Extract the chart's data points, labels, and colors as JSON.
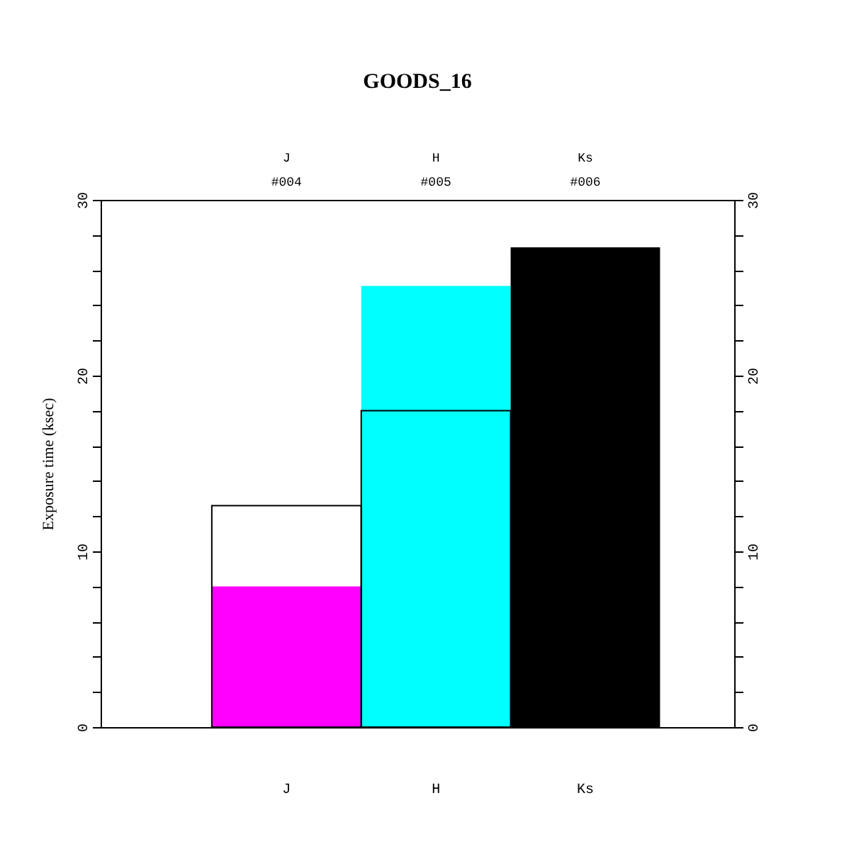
{
  "chart_data": {
    "type": "bar",
    "title": "GOODS_16",
    "ylabel": "Exposure time (ksec)",
    "categories": [
      "J",
      "H",
      "Ks"
    ],
    "annotations": [
      "#004",
      "#005",
      "#006"
    ],
    "series": [
      {
        "colors": [
          "#ff00ff",
          "#00ffff",
          "#000000"
        ],
        "values": [
          8.0,
          25.1,
          27.3
        ]
      },
      {
        "color": "#000000",
        "values": [
          12.6,
          18.0,
          null
        ]
      }
    ],
    "ylim": [
      0,
      30
    ],
    "yticks": [
      0,
      {
        "value": 2,
        "label": null
      },
      {
        "value": 4,
        "label": null
      },
      {
        "value": 6,
        "label": null
      },
      {
        "value": 8,
        "label": null
      },
      10,
      {
        "value": 12,
        "label": null
      },
      {
        "value": 14,
        "label": null
      },
      {
        "value": 16,
        "label": null
      },
      {
        "value": 18,
        "label": null
      },
      20,
      {
        "value": 22,
        "label": null
      },
      {
        "value": 24,
        "label": null
      },
      {
        "value": 26,
        "label": null
      },
      {
        "value": 28,
        "label": null
      },
      30
    ],
    "y2lim": [
      0,
      30
    ],
    "y2ticks": [
      0,
      {
        "value": 2,
        "label": null
      },
      {
        "value": 4,
        "label": null
      },
      {
        "value": 6,
        "label": null
      },
      {
        "value": 8,
        "label": null
      },
      10,
      {
        "value": 12,
        "label": null
      },
      {
        "value": 14,
        "label": null
      },
      {
        "value": 16,
        "label": null
      },
      {
        "value": 18,
        "label": null
      },
      20,
      {
        "value": 22,
        "label": null
      },
      {
        "value": 24,
        "label": null
      },
      {
        "value": 26,
        "label": null
      },
      {
        "value": 28,
        "label": null
      },
      30
    ]
  }
}
